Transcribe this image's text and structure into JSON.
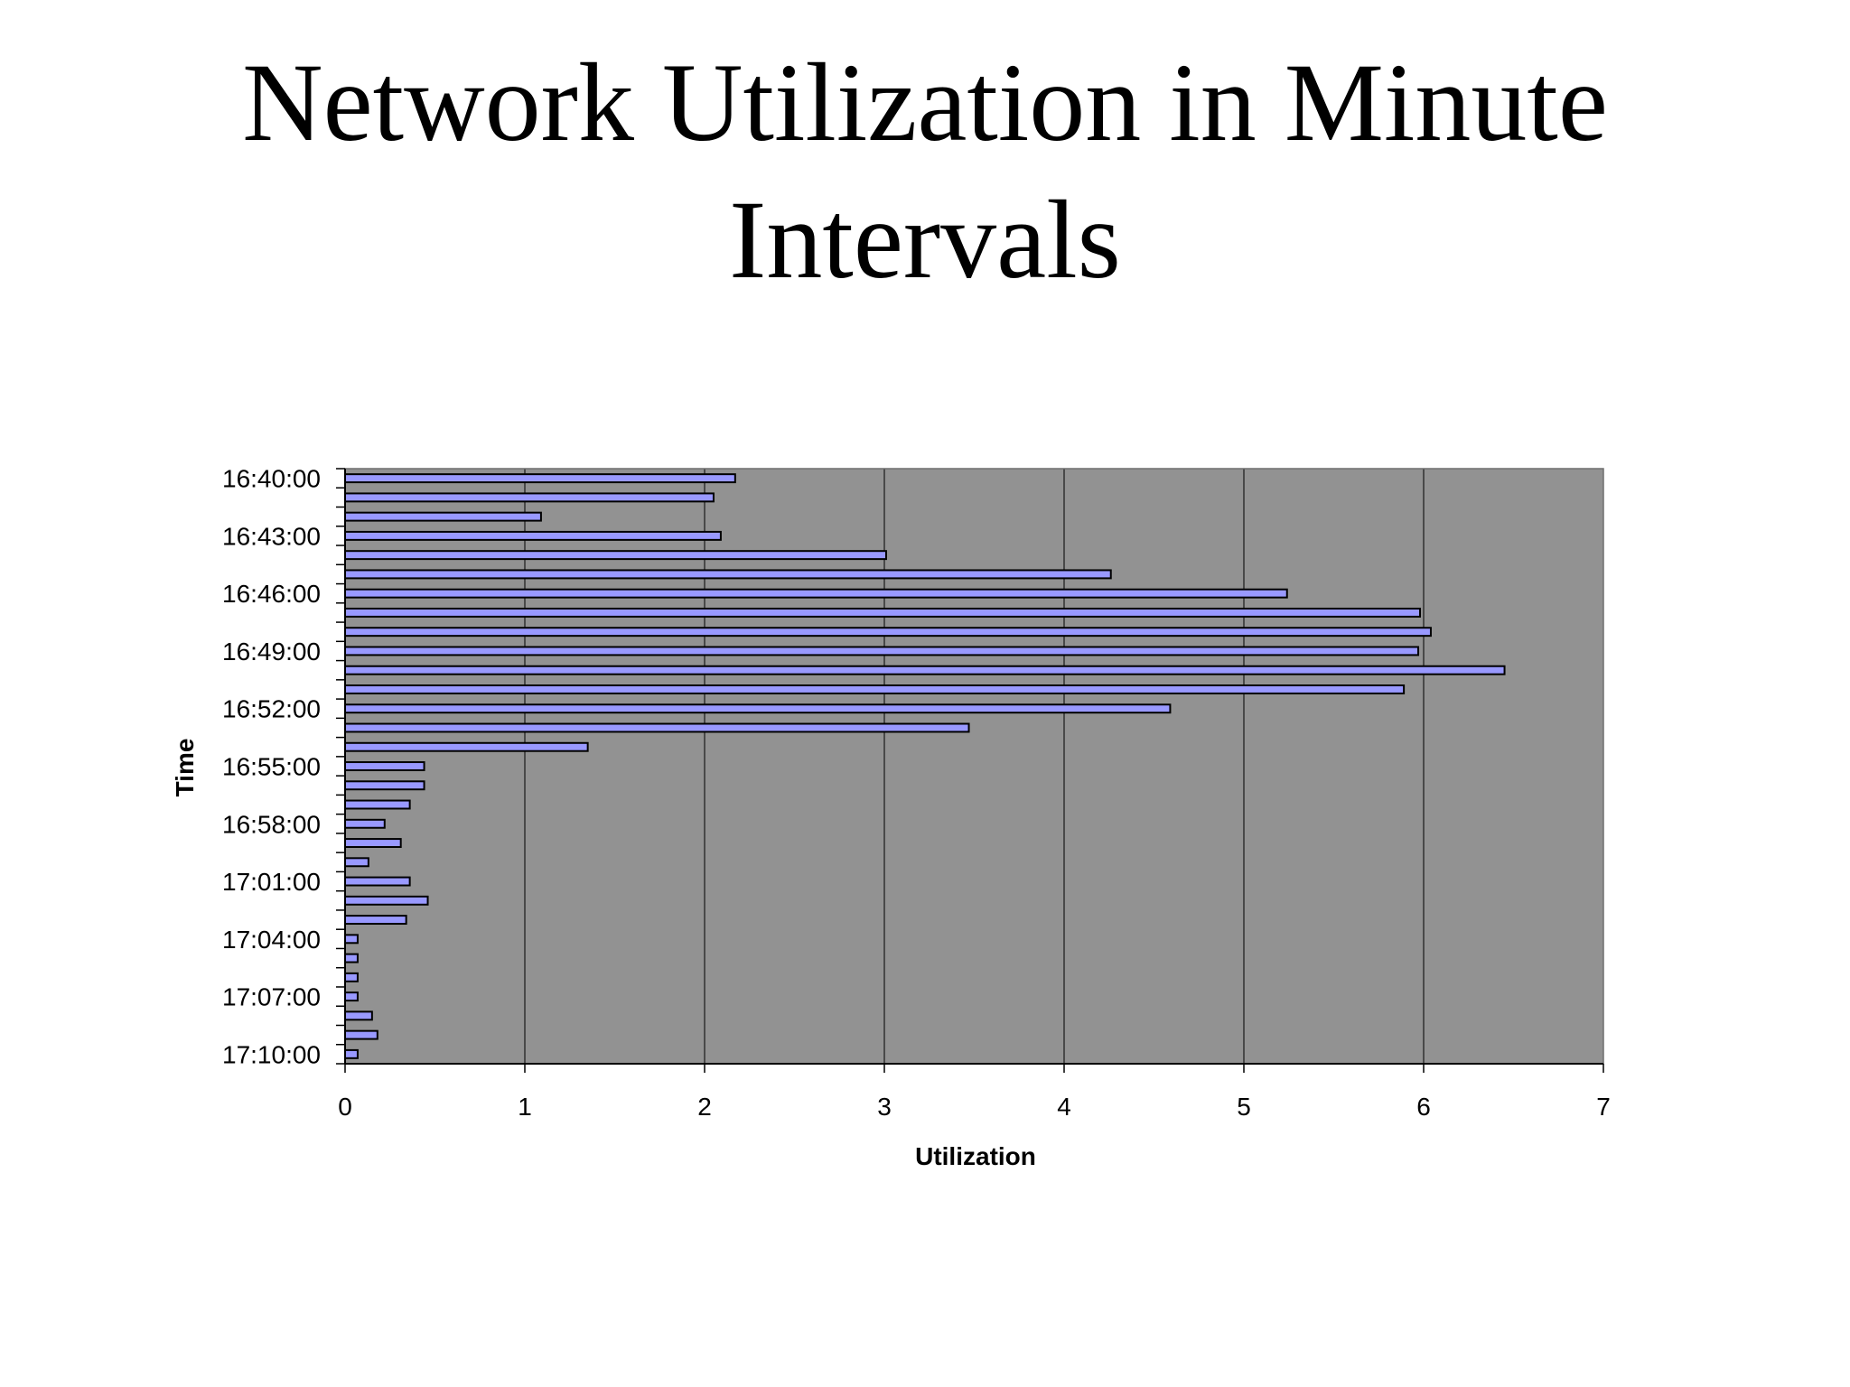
{
  "slide": {
    "title_line1": "Network Utilization in Minute",
    "title_line2": "Intervals"
  },
  "chart_data": {
    "type": "bar",
    "orientation": "horizontal",
    "xlabel": "Utilization",
    "ylabel": "Time",
    "xlim": [
      0,
      7
    ],
    "x_ticks": [
      "0",
      "1",
      "2",
      "3",
      "4",
      "5",
      "6",
      "7"
    ],
    "y_tick_labels": [
      "16:40:00",
      "16:43:00",
      "16:46:00",
      "16:49:00",
      "16:52:00",
      "16:55:00",
      "16:58:00",
      "17:01:00",
      "17:04:00",
      "17:07:00",
      "17:10:00"
    ],
    "categories": [
      "16:40:00",
      "16:41:00",
      "16:42:00",
      "16:43:00",
      "16:44:00",
      "16:45:00",
      "16:46:00",
      "16:47:00",
      "16:48:00",
      "16:49:00",
      "16:50:00",
      "16:51:00",
      "16:52:00",
      "16:53:00",
      "16:54:00",
      "16:55:00",
      "16:56:00",
      "16:57:00",
      "16:58:00",
      "16:59:00",
      "17:00:00",
      "17:01:00",
      "17:02:00",
      "17:03:00",
      "17:04:00",
      "17:05:00",
      "17:06:00",
      "17:07:00",
      "17:08:00",
      "17:09:00",
      "17:10:00"
    ],
    "values": [
      2.17,
      2.05,
      1.09,
      2.09,
      3.01,
      4.26,
      5.24,
      5.98,
      6.04,
      5.97,
      6.45,
      5.89,
      4.59,
      3.47,
      1.35,
      0.44,
      0.44,
      0.36,
      0.22,
      0.31,
      0.13,
      0.36,
      0.46,
      0.34,
      0.07,
      0.07,
      0.07,
      0.07,
      0.15,
      0.18,
      0.07
    ],
    "grid": "vertical",
    "legend": "none",
    "colors": {
      "bar_fill": "#9999ff",
      "bar_stroke": "#000000",
      "plot_bg": "#929292",
      "gridline": "#000000"
    }
  }
}
